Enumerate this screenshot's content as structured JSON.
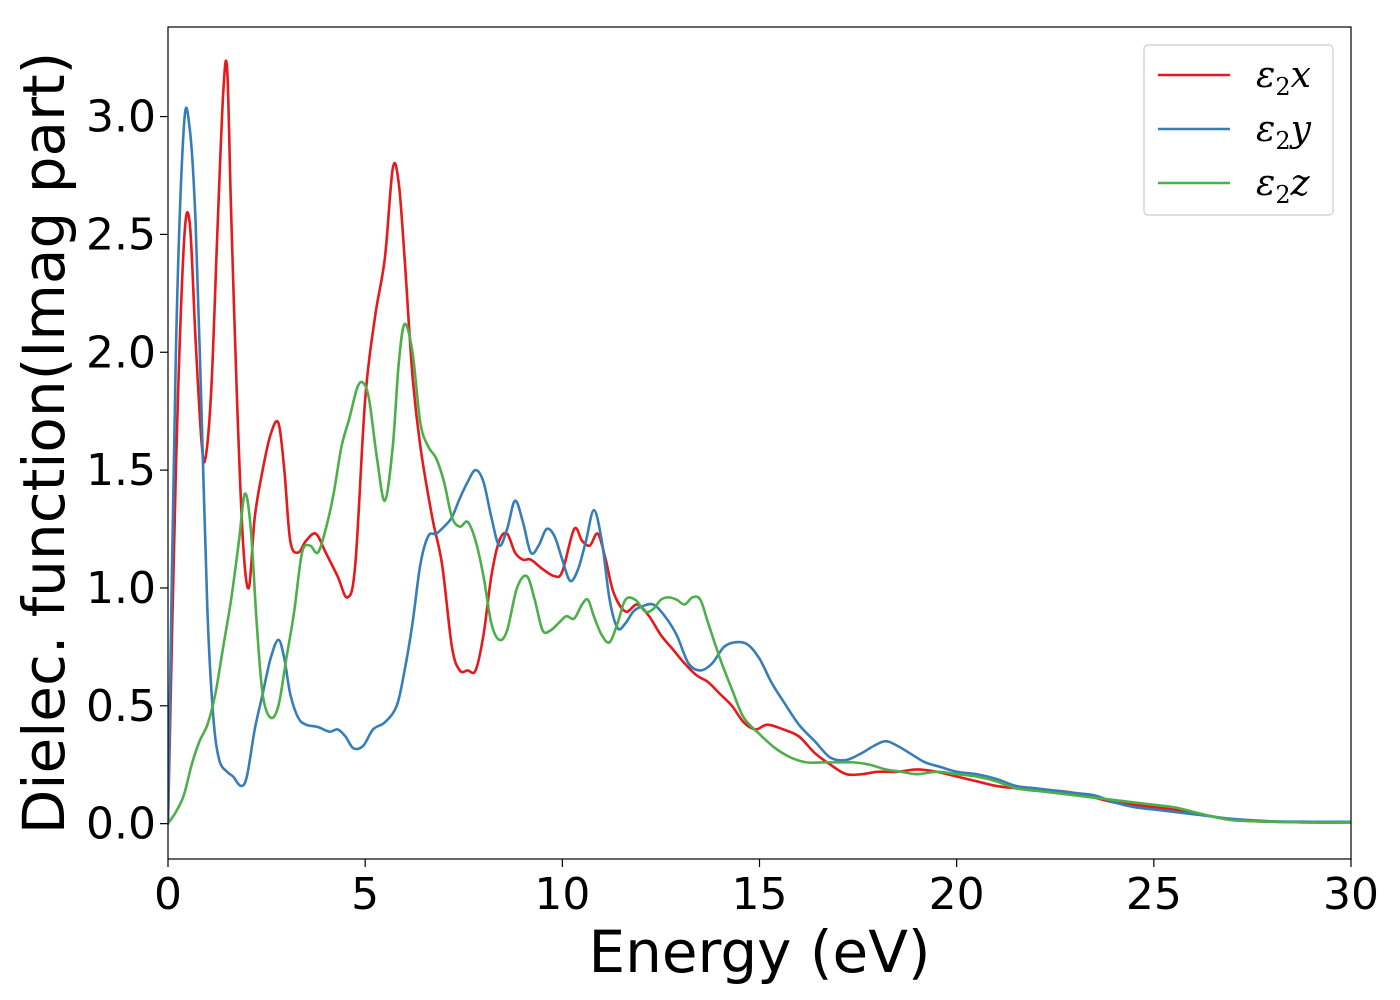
{
  "chart_data": {
    "type": "line",
    "title": "",
    "xlabel": "Energy (eV)",
    "ylabel": "Dielec. function(Imag part)",
    "xlim": [
      0,
      30
    ],
    "ylim": [
      -0.15,
      3.38
    ],
    "xticks": [
      0,
      5,
      10,
      15,
      20,
      25,
      30
    ],
    "xtick_labels": [
      "0",
      "5",
      "10",
      "15",
      "20",
      "25",
      "30"
    ],
    "yticks": [
      0.0,
      0.5,
      1.0,
      1.5,
      2.0,
      2.5,
      3.0
    ],
    "ytick_labels": [
      "0.0",
      "0.5",
      "1.0",
      "1.5",
      "2.0",
      "2.5",
      "3.0"
    ],
    "grid": false,
    "legend_position": "top-right",
    "series": [
      {
        "name": "ε2x",
        "legend_base": "ε",
        "legend_sub": "2",
        "legend_suffix": "x",
        "color": "#e41a1c",
        "x": [
          0,
          0.2,
          0.4,
          0.55,
          0.7,
          0.85,
          0.95,
          1.1,
          1.25,
          1.4,
          1.5,
          1.6,
          1.75,
          1.9,
          2.05,
          2.2,
          2.4,
          2.6,
          2.8,
          2.95,
          3.1,
          3.3,
          3.5,
          3.75,
          4.0,
          4.3,
          4.55,
          4.75,
          5.0,
          5.25,
          5.5,
          5.7,
          5.85,
          6.0,
          6.2,
          6.4,
          6.7,
          6.95,
          7.2,
          7.4,
          7.6,
          7.8,
          8.0,
          8.2,
          8.4,
          8.6,
          8.8,
          9.0,
          9.2,
          9.5,
          9.8,
          10.0,
          10.3,
          10.5,
          10.7,
          10.9,
          11.1,
          11.3,
          11.6,
          11.9,
          12.2,
          12.5,
          12.8,
          13.1,
          13.4,
          13.7,
          14.0,
          14.3,
          14.6,
          14.9,
          15.2,
          15.6,
          16.0,
          16.4,
          16.8,
          17.2,
          17.6,
          18.0,
          18.5,
          19.0,
          19.5,
          20.0,
          20.5,
          21.0,
          21.5,
          22.0,
          22.5,
          23.0,
          23.5,
          24.0,
          24.5,
          25.0,
          25.5,
          26.0,
          26.5,
          27.0,
          28.0,
          29.0,
          30.0
        ],
        "y": [
          0.0,
          1.5,
          2.45,
          2.55,
          2.05,
          1.62,
          1.55,
          1.85,
          2.5,
          3.1,
          3.2,
          2.6,
          1.8,
          1.2,
          1.0,
          1.3,
          1.5,
          1.65,
          1.7,
          1.5,
          1.2,
          1.15,
          1.2,
          1.23,
          1.15,
          1.05,
          0.96,
          1.1,
          1.8,
          2.15,
          2.4,
          2.78,
          2.72,
          2.4,
          1.9,
          1.6,
          1.3,
          1.1,
          0.75,
          0.65,
          0.65,
          0.65,
          0.8,
          1.05,
          1.2,
          1.23,
          1.15,
          1.12,
          1.12,
          1.08,
          1.05,
          1.07,
          1.25,
          1.2,
          1.18,
          1.23,
          1.12,
          0.98,
          0.9,
          0.93,
          0.88,
          0.8,
          0.74,
          0.68,
          0.63,
          0.6,
          0.55,
          0.5,
          0.43,
          0.4,
          0.42,
          0.4,
          0.37,
          0.3,
          0.25,
          0.21,
          0.21,
          0.22,
          0.22,
          0.23,
          0.22,
          0.2,
          0.18,
          0.16,
          0.15,
          0.14,
          0.14,
          0.13,
          0.11,
          0.09,
          0.08,
          0.07,
          0.06,
          0.045,
          0.03,
          0.015,
          0.008,
          0.005,
          0.005
        ]
      },
      {
        "name": "ε2y",
        "legend_base": "ε",
        "legend_sub": "2",
        "legend_suffix": "y",
        "color": "#377eb8",
        "x": [
          0,
          0.2,
          0.4,
          0.55,
          0.7,
          0.85,
          1.0,
          1.15,
          1.3,
          1.5,
          1.65,
          1.85,
          2.0,
          2.2,
          2.4,
          2.6,
          2.8,
          2.95,
          3.1,
          3.3,
          3.5,
          3.8,
          4.1,
          4.3,
          4.5,
          4.7,
          4.95,
          5.2,
          5.5,
          5.8,
          6.0,
          6.2,
          6.4,
          6.6,
          6.8,
          7.0,
          7.2,
          7.4,
          7.6,
          7.8,
          8.0,
          8.2,
          8.4,
          8.6,
          8.8,
          9.0,
          9.2,
          9.4,
          9.6,
          9.8,
          10.0,
          10.2,
          10.4,
          10.6,
          10.8,
          11.0,
          11.2,
          11.4,
          11.6,
          11.8,
          12.0,
          12.3,
          12.6,
          12.9,
          13.2,
          13.5,
          13.8,
          14.1,
          14.4,
          14.7,
          15.0,
          15.3,
          15.6,
          16.0,
          16.4,
          16.8,
          17.2,
          17.6,
          17.9,
          18.2,
          18.5,
          18.8,
          19.2,
          19.6,
          20.0,
          20.5,
          21.0,
          21.5,
          22.0,
          22.5,
          23.0,
          23.5,
          24.0,
          24.5,
          25.0,
          25.5,
          26.0,
          26.5,
          27.0,
          28.0,
          29.0,
          30.0
        ],
        "y": [
          0.0,
          2.0,
          2.95,
          2.95,
          2.55,
          1.75,
          0.9,
          0.45,
          0.27,
          0.22,
          0.2,
          0.16,
          0.2,
          0.4,
          0.55,
          0.7,
          0.78,
          0.7,
          0.55,
          0.45,
          0.42,
          0.41,
          0.39,
          0.4,
          0.37,
          0.32,
          0.33,
          0.4,
          0.43,
          0.5,
          0.65,
          0.85,
          1.1,
          1.22,
          1.23,
          1.26,
          1.3,
          1.38,
          1.45,
          1.5,
          1.45,
          1.3,
          1.18,
          1.25,
          1.37,
          1.28,
          1.15,
          1.18,
          1.25,
          1.22,
          1.12,
          1.03,
          1.08,
          1.2,
          1.33,
          1.2,
          0.95,
          0.83,
          0.85,
          0.9,
          0.92,
          0.93,
          0.88,
          0.8,
          0.68,
          0.65,
          0.68,
          0.75,
          0.77,
          0.76,
          0.7,
          0.6,
          0.52,
          0.42,
          0.35,
          0.28,
          0.27,
          0.3,
          0.33,
          0.35,
          0.33,
          0.3,
          0.26,
          0.24,
          0.22,
          0.21,
          0.19,
          0.16,
          0.15,
          0.14,
          0.13,
          0.12,
          0.09,
          0.07,
          0.06,
          0.05,
          0.04,
          0.03,
          0.02,
          0.01,
          0.008,
          0.008
        ]
      },
      {
        "name": "ε2z",
        "legend_base": "ε",
        "legend_sub": "2",
        "legend_suffix": "z",
        "color": "#4daf4a",
        "x": [
          0,
          0.2,
          0.4,
          0.6,
          0.8,
          1.0,
          1.2,
          1.4,
          1.6,
          1.8,
          1.95,
          2.1,
          2.25,
          2.4,
          2.6,
          2.8,
          3.0,
          3.2,
          3.4,
          3.6,
          3.8,
          4.0,
          4.2,
          4.4,
          4.6,
          4.8,
          4.95,
          5.1,
          5.3,
          5.5,
          5.7,
          5.85,
          6.0,
          6.2,
          6.4,
          6.6,
          6.8,
          7.0,
          7.2,
          7.4,
          7.6,
          7.8,
          8.0,
          8.2,
          8.4,
          8.6,
          8.85,
          9.1,
          9.3,
          9.5,
          9.7,
          9.9,
          10.1,
          10.3,
          10.5,
          10.65,
          10.8,
          11.0,
          11.2,
          11.4,
          11.6,
          11.85,
          12.1,
          12.3,
          12.5,
          12.7,
          12.9,
          13.1,
          13.3,
          13.5,
          13.7,
          14.0,
          14.3,
          14.6,
          15.0,
          15.4,
          15.8,
          16.2,
          16.6,
          17.0,
          17.4,
          17.8,
          18.2,
          18.6,
          19.0,
          19.5,
          20.0,
          20.5,
          21.0,
          21.5,
          22.0,
          22.5,
          23.0,
          23.5,
          24.0,
          24.5,
          25.0,
          25.5,
          26.0,
          26.5,
          27.0,
          28.0,
          29.0,
          30.0
        ],
        "y": [
          0.0,
          0.05,
          0.12,
          0.25,
          0.35,
          0.42,
          0.55,
          0.75,
          0.95,
          1.2,
          1.4,
          1.25,
          0.85,
          0.55,
          0.45,
          0.5,
          0.7,
          0.9,
          1.15,
          1.18,
          1.15,
          1.25,
          1.4,
          1.6,
          1.72,
          1.85,
          1.87,
          1.8,
          1.55,
          1.37,
          1.6,
          1.95,
          2.12,
          2.0,
          1.7,
          1.6,
          1.55,
          1.45,
          1.3,
          1.26,
          1.28,
          1.2,
          1.05,
          0.85,
          0.78,
          0.82,
          1.0,
          1.05,
          0.95,
          0.82,
          0.82,
          0.85,
          0.88,
          0.87,
          0.93,
          0.95,
          0.88,
          0.8,
          0.77,
          0.85,
          0.95,
          0.95,
          0.9,
          0.91,
          0.95,
          0.96,
          0.95,
          0.93,
          0.96,
          0.95,
          0.85,
          0.7,
          0.57,
          0.45,
          0.38,
          0.32,
          0.28,
          0.26,
          0.26,
          0.26,
          0.26,
          0.25,
          0.23,
          0.22,
          0.21,
          0.22,
          0.21,
          0.2,
          0.18,
          0.15,
          0.14,
          0.13,
          0.12,
          0.11,
          0.1,
          0.09,
          0.08,
          0.07,
          0.05,
          0.03,
          0.015,
          0.008,
          0.005,
          0.005
        ]
      }
    ]
  }
}
